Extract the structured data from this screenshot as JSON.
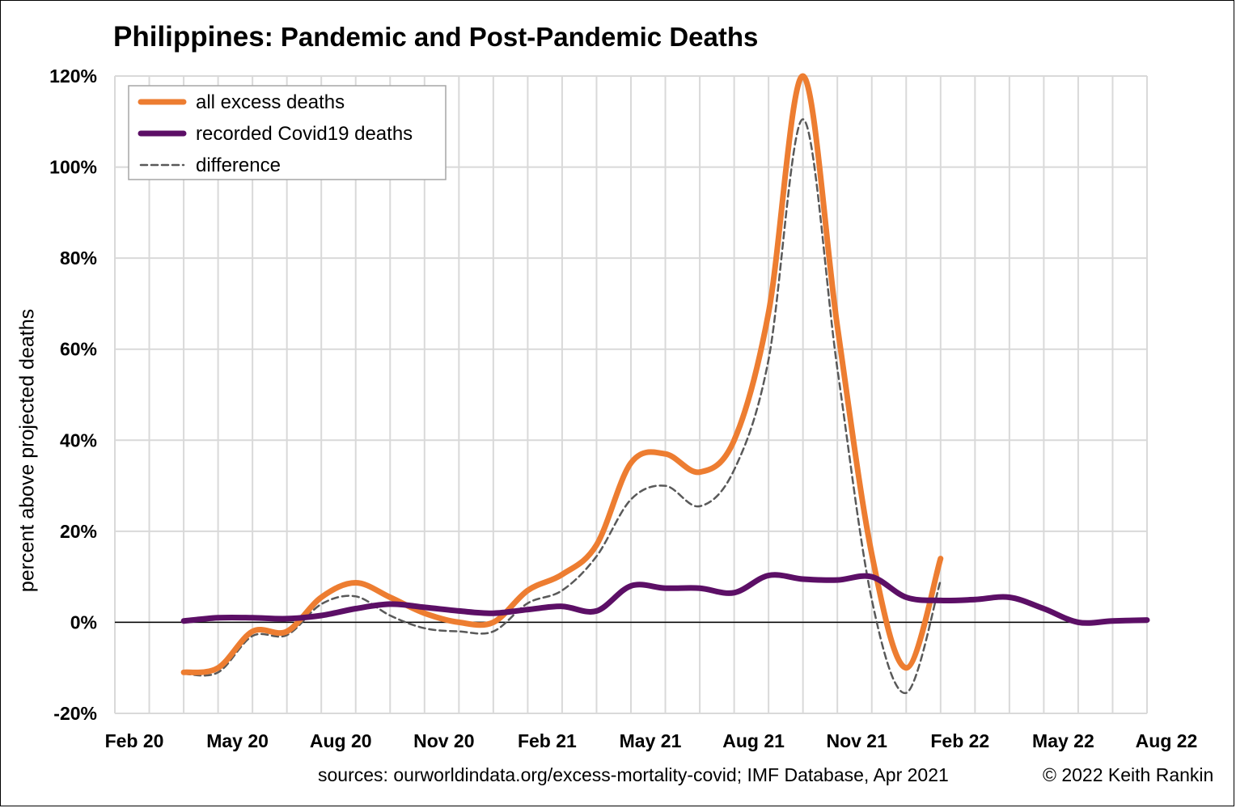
{
  "title": {
    "country": "Philippines",
    "rest": ": Pandemic and Post-Pandemic Deaths"
  },
  "footer": {
    "sources": "sources: ourworldindata.org/excess-mortality-covid; IMF Database, Apr 2021",
    "copyright": "© 2022 Keith Rankin"
  },
  "colors": {
    "excess": "#ED7D31",
    "covid": "#5C0F66",
    "difference": "#595959",
    "grid": "#D9D9D9"
  },
  "chart_data": {
    "type": "line",
    "title": "Philippines: Pandemic and Post-Pandemic Deaths",
    "ylabel": "percent above projected deaths",
    "xlabel": "",
    "ylim": [
      -20,
      120
    ],
    "y_ticks": [
      "-20%",
      "0%",
      "20%",
      "40%",
      "60%",
      "80%",
      "100%",
      "120%"
    ],
    "x_ticks": [
      "Feb 20",
      "May 20",
      "Aug 20",
      "Nov 20",
      "Feb 21",
      "May 21",
      "Aug 21",
      "Nov 21",
      "Feb 22",
      "May 22",
      "Aug 22"
    ],
    "x_unit": "months since Feb 2020",
    "grid": true,
    "legend_position": "top-left",
    "series": [
      {
        "name": "all excess deaths",
        "style": "solid-thick",
        "points": [
          [
            2,
            -11
          ],
          [
            3,
            -10
          ],
          [
            4,
            -2
          ],
          [
            5,
            -2
          ],
          [
            6,
            5.5
          ],
          [
            7,
            8.7
          ],
          [
            8,
            5.5
          ],
          [
            9,
            2
          ],
          [
            10,
            0
          ],
          [
            11,
            0
          ],
          [
            12,
            7
          ],
          [
            13,
            10.5
          ],
          [
            14,
            17
          ],
          [
            15,
            35
          ],
          [
            16,
            37
          ],
          [
            17,
            33
          ],
          [
            18,
            40
          ],
          [
            19,
            68
          ],
          [
            20,
            120
          ],
          [
            21,
            65
          ],
          [
            22,
            15
          ],
          [
            23,
            -10
          ],
          [
            24,
            14
          ]
        ]
      },
      {
        "name": "recorded Covid19 deaths",
        "style": "solid-thick",
        "points": [
          [
            2,
            0.3
          ],
          [
            3,
            1
          ],
          [
            4,
            1
          ],
          [
            5,
            0.8
          ],
          [
            6,
            1.5
          ],
          [
            7,
            3
          ],
          [
            8,
            4
          ],
          [
            9,
            3.3
          ],
          [
            10,
            2.5
          ],
          [
            11,
            2
          ],
          [
            12,
            2.8
          ],
          [
            13,
            3.5
          ],
          [
            14,
            2.5
          ],
          [
            15,
            8
          ],
          [
            16,
            7.5
          ],
          [
            17,
            7.5
          ],
          [
            18,
            6.5
          ],
          [
            19,
            10.3
          ],
          [
            20,
            9.5
          ],
          [
            21,
            9.3
          ],
          [
            22,
            10
          ],
          [
            23,
            5.5
          ],
          [
            24,
            4.8
          ],
          [
            25,
            5
          ],
          [
            26,
            5.5
          ],
          [
            27,
            3
          ],
          [
            28,
            0
          ],
          [
            29,
            0.3
          ],
          [
            30,
            0.5
          ]
        ]
      },
      {
        "name": "difference",
        "style": "dashed",
        "points": [
          [
            2,
            -11.3
          ],
          [
            3,
            -11
          ],
          [
            4,
            -3
          ],
          [
            5,
            -2.8
          ],
          [
            6,
            4
          ],
          [
            7,
            5.7
          ],
          [
            8,
            1.5
          ],
          [
            9,
            -1.3
          ],
          [
            10,
            -2
          ],
          [
            11,
            -2
          ],
          [
            12,
            4.2
          ],
          [
            13,
            7
          ],
          [
            14,
            14.5
          ],
          [
            15,
            27
          ],
          [
            16,
            30
          ],
          [
            17,
            25.5
          ],
          [
            18,
            33.5
          ],
          [
            19,
            57.7
          ],
          [
            20,
            110.5
          ],
          [
            21,
            55.7
          ],
          [
            22,
            5
          ],
          [
            23,
            -15.5
          ],
          [
            24,
            9.2
          ]
        ]
      }
    ]
  }
}
